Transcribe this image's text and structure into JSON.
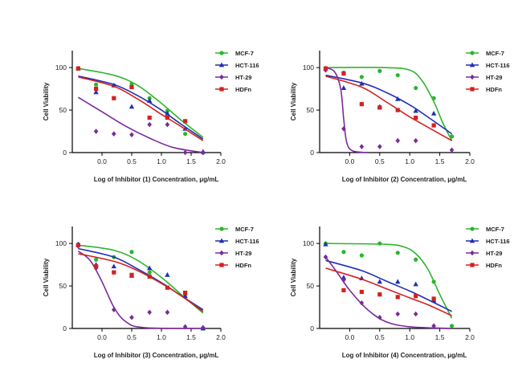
{
  "figure": {
    "legend_position": "top-right",
    "background": "#ffffff",
    "axis_color": "#000000"
  },
  "series_styles": [
    {
      "name": "MCF-7",
      "color": "#2db52d",
      "marker": "circle"
    },
    {
      "name": "HCT-116",
      "color": "#1f2fb3",
      "marker": "triangle"
    },
    {
      "name": "HT-29",
      "color": "#7a2a9a",
      "marker": "diamond"
    },
    {
      "name": "HDFn",
      "color": "#d62020",
      "marker": "square"
    }
  ],
  "chart_data": [
    {
      "type": "scatter",
      "xlabel": "Log of Inhibitor (1) Concentration, μg/mL",
      "ylabel": "Cell Viability",
      "xlim": [
        -0.5,
        2.0
      ],
      "ylim": [
        0,
        120
      ],
      "xticks": [
        "0.0",
        "0.5",
        "1.0",
        "1.5",
        "2.0"
      ],
      "yticks": [
        "0",
        "50",
        "100"
      ],
      "legend": [
        "MCF-7",
        "HCT-116",
        "HT-29",
        "HDFn"
      ],
      "grid": false,
      "series": [
        {
          "name": "MCF-7",
          "x": [
            -0.4,
            -0.1,
            0.2,
            0.5,
            0.8,
            1.1,
            1.4,
            1.7
          ],
          "y": [
            99,
            80,
            79,
            81,
            64,
            49,
            22,
            0
          ],
          "fit": [
            [
              -0.4,
              99
            ],
            [
              0.2,
              91
            ],
            [
              0.6,
              79
            ],
            [
              1.0,
              58
            ],
            [
              1.3,
              40
            ],
            [
              1.7,
              18
            ]
          ]
        },
        {
          "name": "HCT-116",
          "x": [
            -0.4,
            -0.1,
            0.2,
            0.5,
            0.8,
            1.1,
            1.4,
            1.7
          ],
          "y": [
            99,
            71,
            79,
            54,
            61,
            46,
            28,
            1
          ],
          "fit": [
            [
              -0.4,
              90
            ],
            [
              0.2,
              80
            ],
            [
              0.6,
              67
            ],
            [
              1.0,
              50
            ],
            [
              1.3,
              35
            ],
            [
              1.7,
              16
            ]
          ]
        },
        {
          "name": "HT-29",
          "x": [
            -0.1,
            0.2,
            0.5,
            0.8,
            1.1,
            1.4,
            1.7
          ],
          "y": [
            25,
            22,
            21,
            33,
            33,
            0,
            0
          ],
          "fit": [
            [
              -0.4,
              65
            ],
            [
              0.0,
              48
            ],
            [
              0.4,
              31
            ],
            [
              0.8,
              17
            ],
            [
              1.2,
              6
            ],
            [
              1.7,
              0
            ]
          ]
        },
        {
          "name": "HDFn",
          "x": [
            -0.4,
            -0.1,
            0.2,
            0.5,
            0.8,
            1.1,
            1.4
          ],
          "y": [
            99,
            75,
            64,
            77,
            41,
            41,
            37
          ],
          "fit": [
            [
              -0.4,
              89
            ],
            [
              0.2,
              78
            ],
            [
              0.6,
              63
            ],
            [
              1.0,
              45
            ],
            [
              1.3,
              32
            ],
            [
              1.7,
              14
            ]
          ]
        }
      ]
    },
    {
      "type": "scatter",
      "xlabel": "Log of Inhibitor (2) Concentration, μg/mL",
      "ylabel": "Cell Viability",
      "xlim": [
        -0.5,
        2.0
      ],
      "ylim": [
        0,
        120
      ],
      "xticks": [
        "0.0",
        "0.5",
        "1.0",
        "1.5",
        "2.0"
      ],
      "yticks": [
        "0",
        "50",
        "100"
      ],
      "legend": [
        "MCF-7",
        "HCT-116",
        "HT-29",
        "HDFn"
      ],
      "grid": false,
      "series": [
        {
          "name": "MCF-7",
          "x": [
            -0.4,
            -0.1,
            0.2,
            0.5,
            0.8,
            1.1,
            1.4,
            1.7
          ],
          "y": [
            99,
            94,
            89,
            96,
            91,
            76,
            64,
            19
          ],
          "fit": [
            [
              -0.4,
              100
            ],
            [
              0.6,
              100
            ],
            [
              1.0,
              97
            ],
            [
              1.2,
              85
            ],
            [
              1.4,
              60
            ],
            [
              1.55,
              35
            ],
            [
              1.7,
              14
            ]
          ]
        },
        {
          "name": "HCT-116",
          "x": [
            -0.4,
            -0.1,
            0.2,
            0.5,
            0.8,
            1.1,
            1.4
          ],
          "y": [
            99,
            76,
            81,
            54,
            63,
            49,
            46
          ],
          "fit": [
            [
              -0.4,
              91
            ],
            [
              0.2,
              82
            ],
            [
              0.6,
              71
            ],
            [
              1.0,
              56
            ],
            [
              1.3,
              42
            ],
            [
              1.7,
              22
            ]
          ]
        },
        {
          "name": "HT-29",
          "x": [
            -0.4,
            -0.1,
            0.2,
            0.5,
            0.8,
            1.1,
            1.7
          ],
          "y": [
            97,
            28,
            7,
            7,
            14,
            14,
            3
          ],
          "fit": [
            [
              -0.4,
              100
            ],
            [
              -0.25,
              95
            ],
            [
              -0.15,
              75
            ],
            [
              -0.1,
              40
            ],
            [
              -0.05,
              12
            ],
            [
              0.05,
              2
            ],
            [
              0.3,
              0
            ]
          ]
        },
        {
          "name": "HDFn",
          "x": [
            -0.4,
            -0.1,
            0.2,
            0.5,
            0.8,
            1.1,
            1.4
          ],
          "y": [
            99,
            93,
            57,
            53,
            50,
            41,
            32
          ],
          "fit": [
            [
              -0.4,
              90
            ],
            [
              0.2,
              77
            ],
            [
              0.6,
              60
            ],
            [
              1.0,
              42
            ],
            [
              1.3,
              30
            ],
            [
              1.7,
              14
            ]
          ]
        }
      ]
    },
    {
      "type": "scatter",
      "xlabel": "Log of Inhibitor (3) Concentration, μg/mL",
      "ylabel": "Cell Viability",
      "xlim": [
        -0.5,
        2.0
      ],
      "ylim": [
        0,
        120
      ],
      "xticks": [
        "0.0",
        "0.5",
        "1.0",
        "1.5",
        "2.0"
      ],
      "yticks": [
        "0",
        "50",
        "100"
      ],
      "legend": [
        "MCF-7",
        "HCT-116",
        "HT-29",
        "HDFn"
      ],
      "grid": false,
      "series": [
        {
          "name": "MCF-7",
          "x": [
            -0.4,
            -0.1,
            0.2,
            0.5,
            0.8,
            1.1,
            1.4,
            1.7
          ],
          "y": [
            99,
            81,
            84,
            90,
            66,
            48,
            40,
            0
          ],
          "fit": [
            [
              -0.4,
              98
            ],
            [
              0.2,
              92
            ],
            [
              0.6,
              80
            ],
            [
              1.0,
              60
            ],
            [
              1.3,
              42
            ],
            [
              1.7,
              18
            ]
          ]
        },
        {
          "name": "HCT-116",
          "x": [
            -0.4,
            -0.1,
            0.2,
            0.5,
            0.8,
            1.1,
            1.4,
            1.7
          ],
          "y": [
            99,
            75,
            73,
            62,
            71,
            63,
            38,
            0
          ],
          "fit": [
            [
              -0.4,
              94
            ],
            [
              0.2,
              84
            ],
            [
              0.6,
              70
            ],
            [
              1.0,
              54
            ],
            [
              1.3,
              40
            ],
            [
              1.7,
              22
            ]
          ]
        },
        {
          "name": "HT-29",
          "x": [
            -0.4,
            -0.1,
            0.2,
            0.5,
            0.8,
            1.1,
            1.4,
            1.7
          ],
          "y": [
            97,
            71,
            22,
            13,
            19,
            19,
            2,
            1
          ],
          "fit": [
            [
              -0.4,
              91
            ],
            [
              -0.2,
              80
            ],
            [
              0.0,
              55
            ],
            [
              0.2,
              25
            ],
            [
              0.4,
              8
            ],
            [
              0.7,
              1
            ],
            [
              1.7,
              0
            ]
          ]
        },
        {
          "name": "HDFn",
          "x": [
            -0.4,
            -0.1,
            0.2,
            0.5,
            0.8,
            1.1,
            1.4
          ],
          "y": [
            98,
            73,
            66,
            63,
            61,
            48,
            42
          ],
          "fit": [
            [
              -0.4,
              88
            ],
            [
              0.2,
              79
            ],
            [
              0.6,
              68
            ],
            [
              1.0,
              53
            ],
            [
              1.3,
              40
            ],
            [
              1.7,
              20
            ]
          ]
        }
      ]
    },
    {
      "type": "scatter",
      "xlabel": "Log of Inhibitor (4) Concentration, μg/mL",
      "ylabel": "Cell Viability",
      "xlim": [
        -0.5,
        2.0
      ],
      "ylim": [
        0,
        120
      ],
      "xticks": [
        "0.0",
        "0.5",
        "1.0",
        "1.5",
        "2.0"
      ],
      "yticks": [
        "0",
        "50",
        "100"
      ],
      "legend": [
        "MCF-7",
        "HCT-116",
        "HT-29",
        "HDFn"
      ],
      "grid": false,
      "series": [
        {
          "name": "MCF-7",
          "x": [
            -0.4,
            -0.1,
            0.2,
            0.5,
            0.8,
            1.1,
            1.4,
            1.7
          ],
          "y": [
            100,
            90,
            86,
            100,
            89,
            81,
            55,
            3
          ],
          "fit": [
            [
              -0.4,
              100
            ],
            [
              0.6,
              99
            ],
            [
              0.9,
              96
            ],
            [
              1.1,
              88
            ],
            [
              1.3,
              70
            ],
            [
              1.5,
              40
            ],
            [
              1.7,
              12
            ]
          ]
        },
        {
          "name": "HCT-116",
          "x": [
            -0.4,
            -0.1,
            0.2,
            0.5,
            0.8,
            1.1,
            1.4
          ],
          "y": [
            99,
            60,
            59,
            55,
            55,
            52,
            33
          ],
          "fit": [
            [
              -0.4,
              80
            ],
            [
              0.2,
              68
            ],
            [
              0.6,
              56
            ],
            [
              1.0,
              44
            ],
            [
              1.3,
              34
            ],
            [
              1.7,
              20
            ]
          ]
        },
        {
          "name": "HT-29",
          "x": [
            -0.4,
            -0.1,
            0.2,
            0.5,
            0.8,
            1.1,
            1.4
          ],
          "y": [
            84,
            57,
            30,
            13,
            17,
            17,
            3
          ],
          "fit": [
            [
              -0.4,
              84
            ],
            [
              -0.2,
              65
            ],
            [
              0.0,
              45
            ],
            [
              0.3,
              22
            ],
            [
              0.6,
              8
            ],
            [
              1.0,
              2
            ],
            [
              1.7,
              0
            ]
          ]
        },
        {
          "name": "HDFn",
          "x": [
            -0.1,
            0.2,
            0.5,
            0.8,
            1.1,
            1.4
          ],
          "y": [
            45,
            43,
            40,
            37,
            38,
            35
          ],
          "fit": [
            [
              -0.4,
              71
            ],
            [
              0.2,
              58
            ],
            [
              0.6,
              47
            ],
            [
              1.0,
              36
            ],
            [
              1.3,
              28
            ],
            [
              1.7,
              15
            ]
          ]
        }
      ]
    }
  ]
}
